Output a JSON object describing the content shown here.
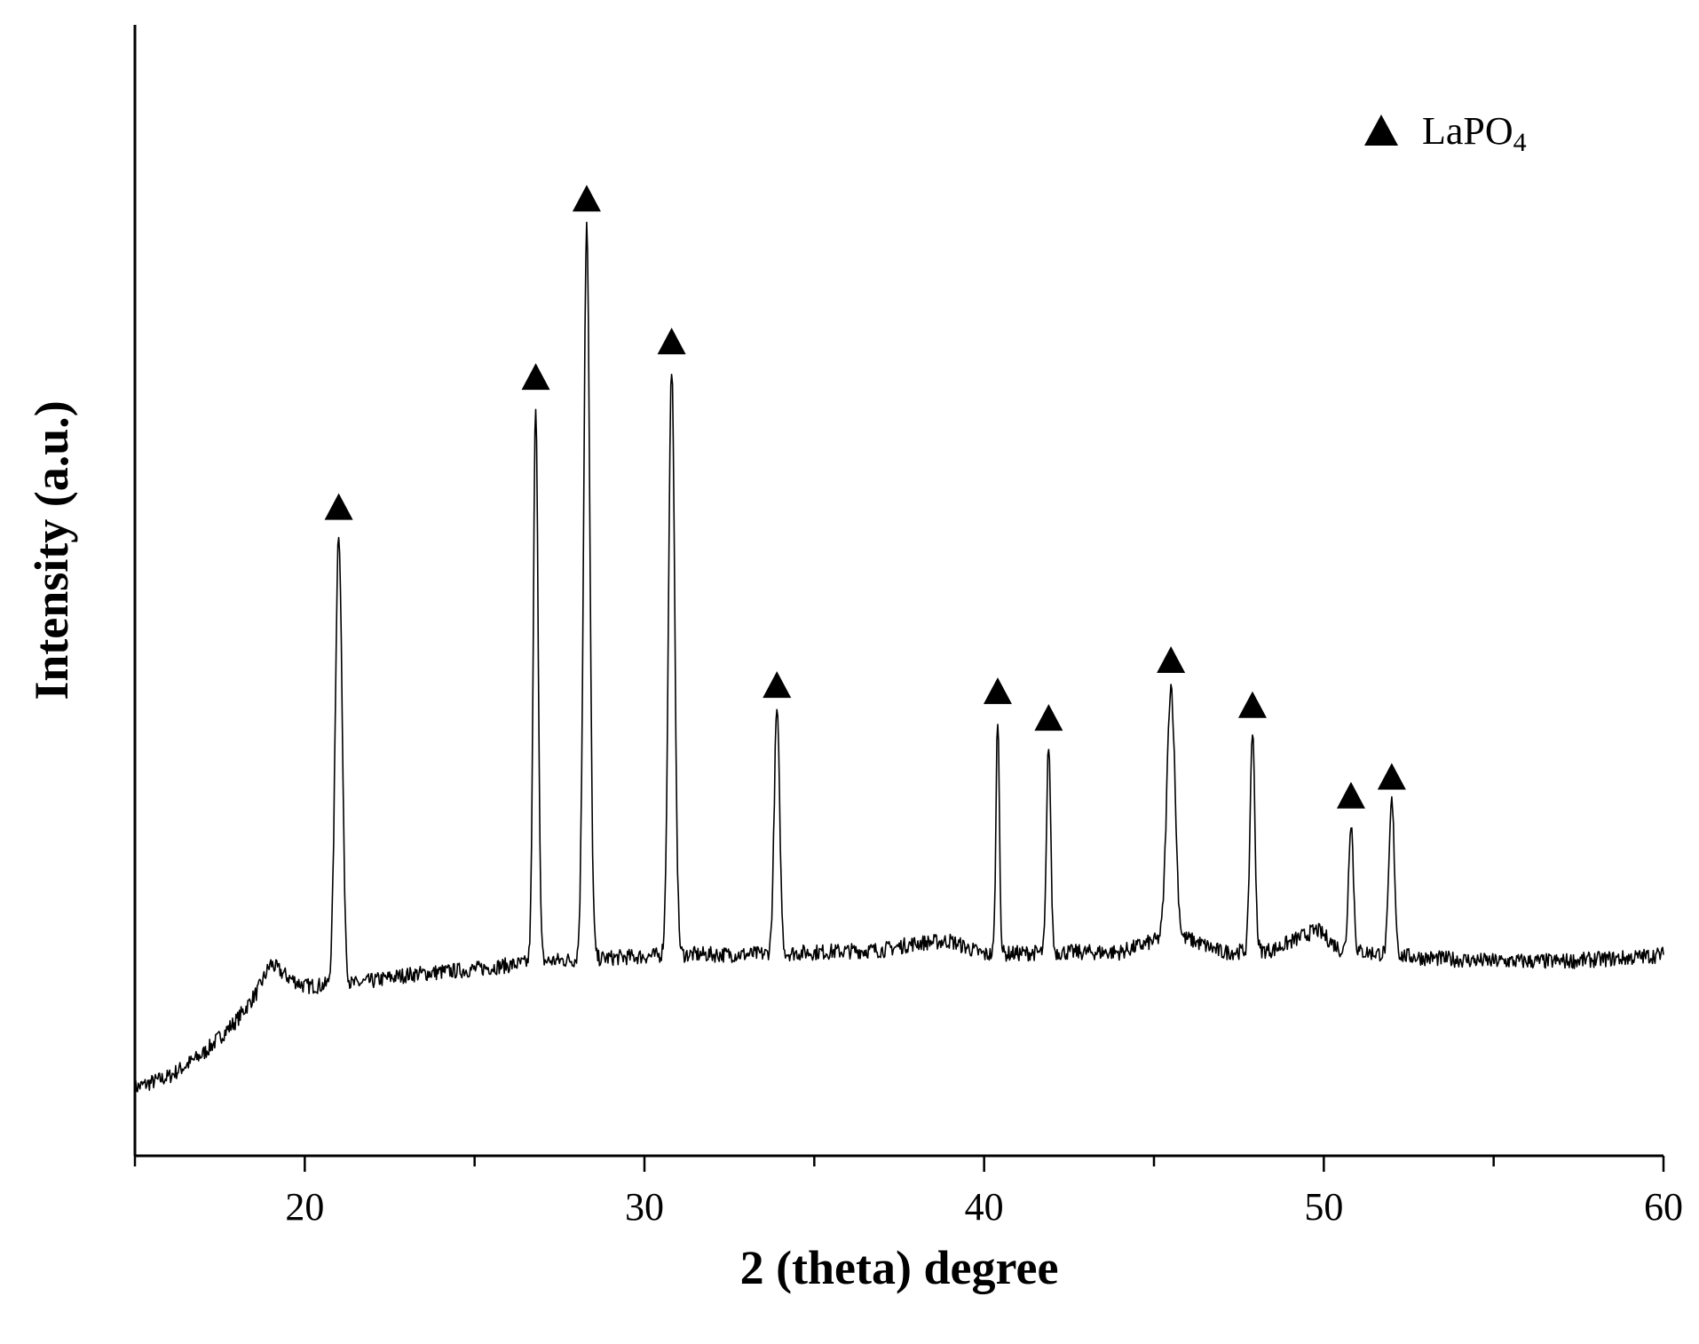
{
  "chart_data": {
    "type": "line",
    "title": "",
    "xlabel": "2 (theta) degree",
    "ylabel": "Intensity (a.u.)",
    "xlim": [
      15,
      60
    ],
    "ylim": [
      0,
      1000
    ],
    "x_ticks": [
      20,
      30,
      40,
      50,
      60
    ],
    "x_tick_labels": [
      "20",
      "30",
      "40",
      "50",
      "60"
    ],
    "y_ticks_visible": false,
    "grid": false,
    "line_color": "#000000",
    "legend": {
      "position": "top-right",
      "marker": "triangle-up",
      "label_main": "LaPO",
      "label_sub": "4"
    },
    "series": [
      {
        "name": "LaPO4",
        "baseline": [
          [
            15.0,
            60
          ],
          [
            16.0,
            70
          ],
          [
            17.0,
            90
          ],
          [
            18.0,
            120
          ],
          [
            18.6,
            145
          ],
          [
            19.0,
            170
          ],
          [
            19.5,
            158
          ],
          [
            20.0,
            150
          ],
          [
            21.5,
            152
          ],
          [
            23.0,
            160
          ],
          [
            25.0,
            165
          ],
          [
            27.0,
            172
          ],
          [
            29.0,
            175
          ],
          [
            31.0,
            178
          ],
          [
            33.0,
            178
          ],
          [
            35.0,
            180
          ],
          [
            37.0,
            182
          ],
          [
            38.0,
            188
          ],
          [
            39.0,
            190
          ],
          [
            40.0,
            178
          ],
          [
            42.0,
            180
          ],
          [
            44.0,
            180
          ],
          [
            45.0,
            190
          ],
          [
            46.0,
            192
          ],
          [
            47.0,
            180
          ],
          [
            48.5,
            182
          ],
          [
            49.8,
            200
          ],
          [
            50.5,
            182
          ],
          [
            53.0,
            175
          ],
          [
            55.0,
            172
          ],
          [
            57.0,
            172
          ],
          [
            59.0,
            175
          ],
          [
            60.0,
            178
          ]
        ],
        "peaks": [
          {
            "x": 21.0,
            "height": 400,
            "width": 0.1
          },
          {
            "x": 26.8,
            "height": 495,
            "width": 0.07
          },
          {
            "x": 28.3,
            "height": 650,
            "width": 0.09
          },
          {
            "x": 30.8,
            "height": 520,
            "width": 0.09
          },
          {
            "x": 33.9,
            "height": 215,
            "width": 0.08
          },
          {
            "x": 40.4,
            "height": 210,
            "width": 0.05
          },
          {
            "x": 41.9,
            "height": 185,
            "width": 0.06
          },
          {
            "x": 45.5,
            "height": 225,
            "width": 0.12
          },
          {
            "x": 47.9,
            "height": 195,
            "width": 0.07
          },
          {
            "x": 50.8,
            "height": 115,
            "width": 0.07
          },
          {
            "x": 52.0,
            "height": 135,
            "width": 0.08
          }
        ],
        "marked_peaks": [
          21.0,
          26.8,
          28.3,
          30.8,
          33.9,
          40.4,
          41.9,
          45.5,
          47.9,
          50.8,
          52.0
        ]
      }
    ]
  }
}
